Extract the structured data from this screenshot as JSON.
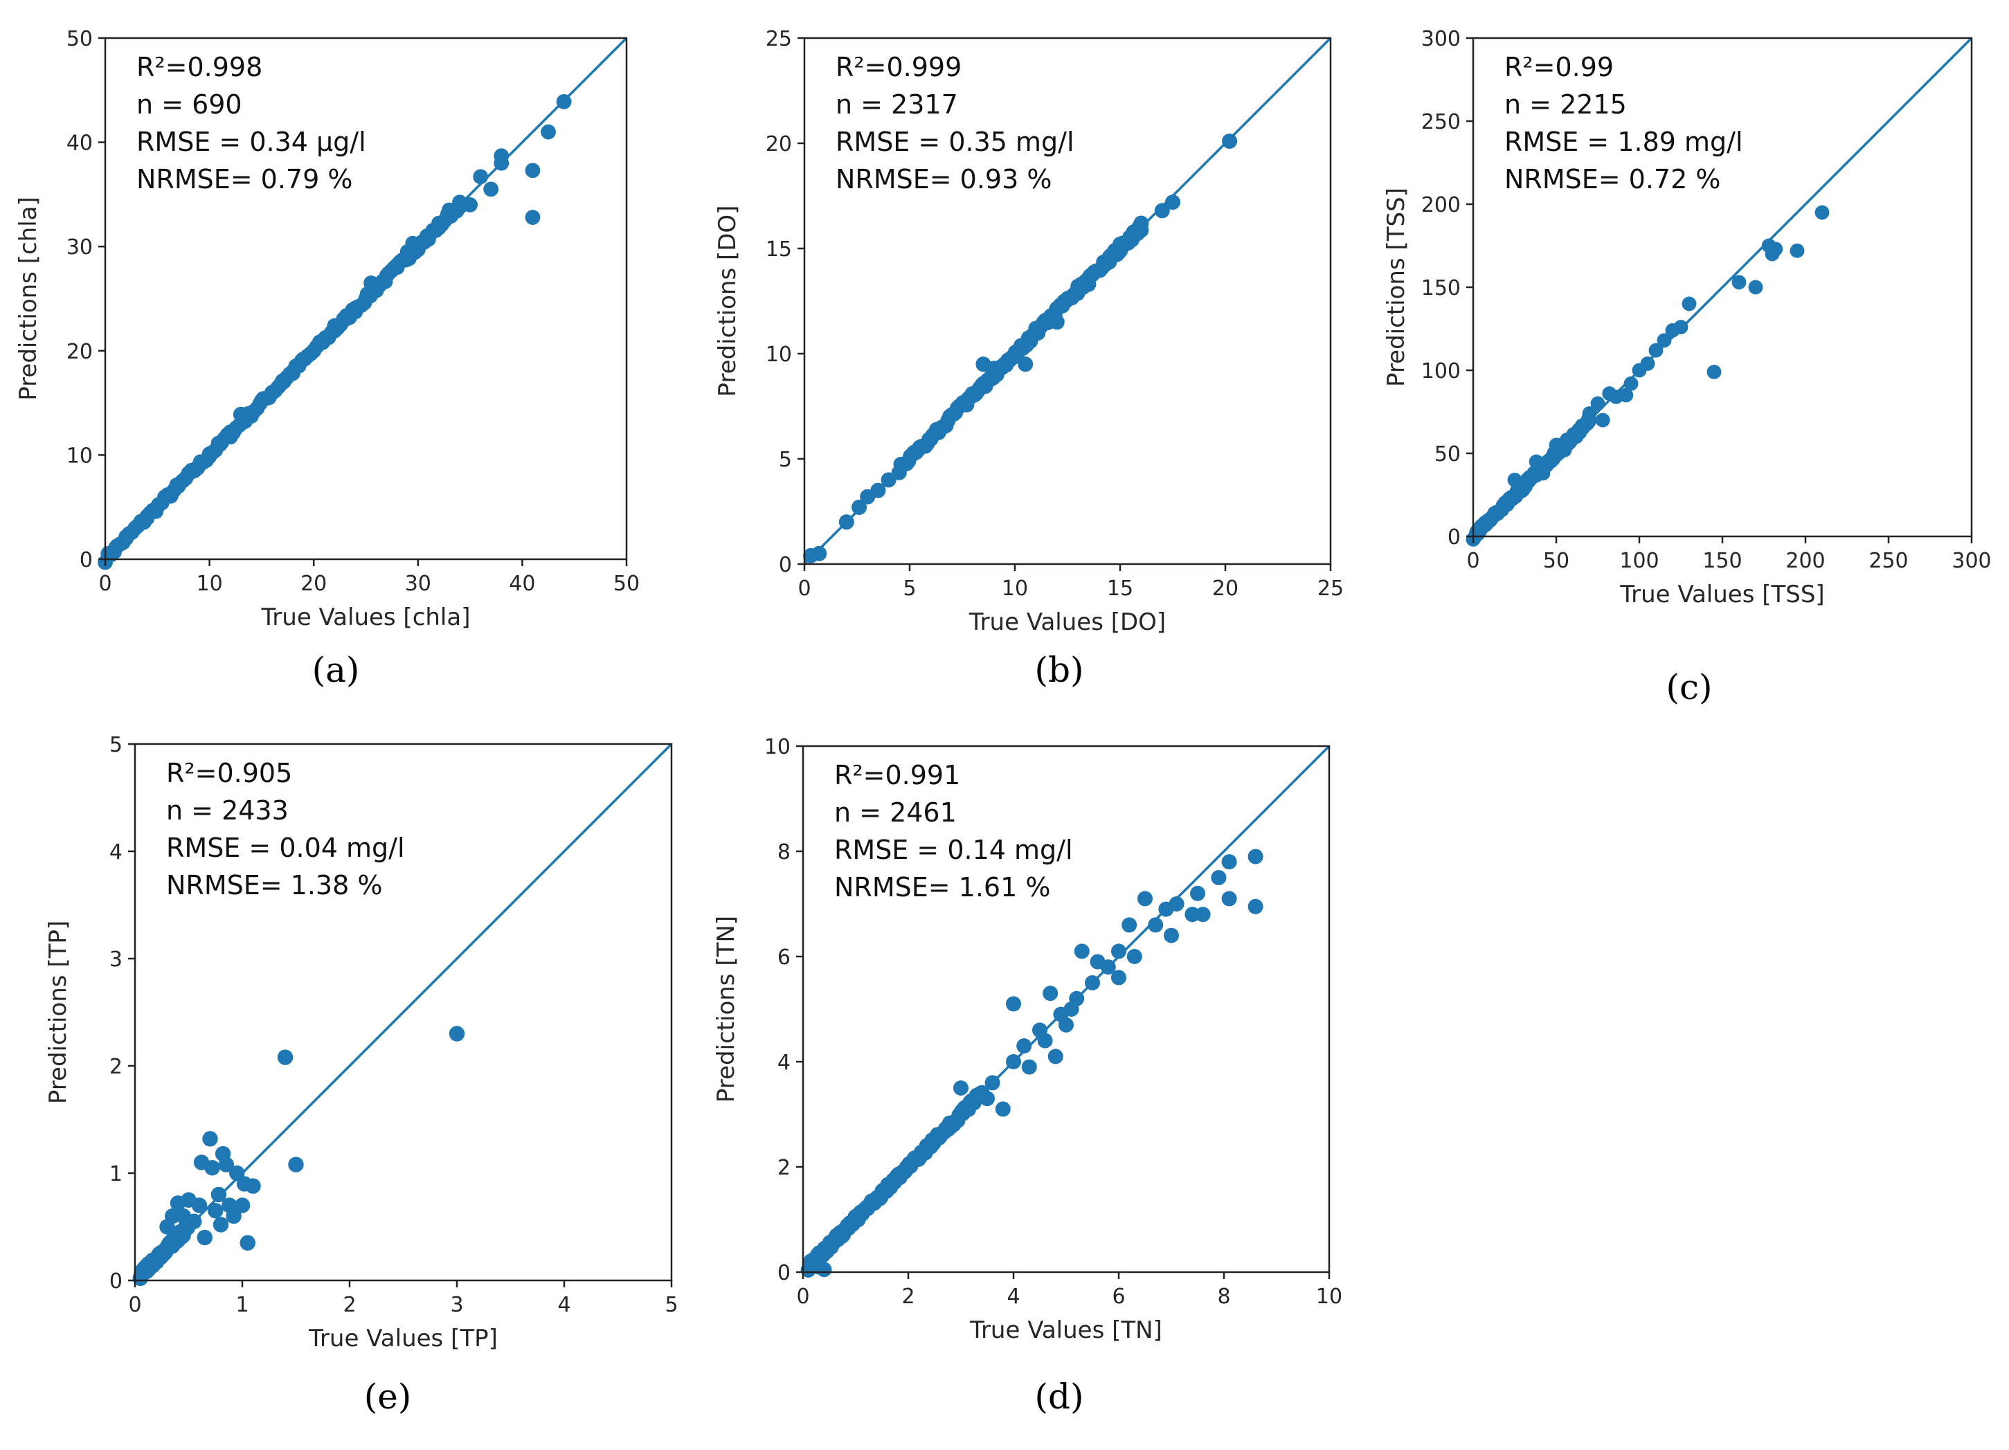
{
  "chart_data": [
    {
      "id": "a",
      "type": "scatter",
      "caption": "(a)",
      "xlabel": "True Values [chla]",
      "ylabel": "Predictions [chla]",
      "xlim": [
        0,
        50
      ],
      "ylim": [
        0,
        50
      ],
      "xticks": [
        0,
        10,
        20,
        30,
        40,
        50
      ],
      "yticks": [
        0,
        10,
        20,
        30,
        40,
        50
      ],
      "reference_line": [
        [
          0,
          0
        ],
        [
          50,
          50
        ]
      ],
      "stats": [
        "R²=0.998",
        "n = 690",
        "RMSE = 0.34 µg/l",
        "NRMSE= 0.79 %"
      ],
      "series": [
        {
          "color": "#1f77b4",
          "dense_range": [
            0,
            34
          ],
          "dense_count": 120,
          "points": [
            [
              0.5,
              0.5
            ],
            [
              1,
              1.1
            ],
            [
              2,
              2
            ],
            [
              3,
              3.1
            ],
            [
              4,
              4.1
            ],
            [
              5,
              5
            ],
            [
              6,
              6.1
            ],
            [
              7,
              7
            ],
            [
              8,
              8.2
            ],
            [
              9,
              9
            ],
            [
              10,
              10.1
            ],
            [
              11,
              11
            ],
            [
              12,
              12.2
            ],
            [
              13,
              13.9
            ],
            [
              14,
              14
            ],
            [
              15,
              15.2
            ],
            [
              16,
              16
            ],
            [
              17,
              17.1
            ],
            [
              18,
              18
            ],
            [
              19,
              19.2
            ],
            [
              20,
              20
            ],
            [
              21,
              21.1
            ],
            [
              22,
              22.4
            ],
            [
              23,
              23
            ],
            [
              24,
              24.1
            ],
            [
              25,
              25
            ],
            [
              25.5,
              26.5
            ],
            [
              26.5,
              26.5
            ],
            [
              27,
              27.2
            ],
            [
              28,
              28
            ],
            [
              28.5,
              28.7
            ],
            [
              29,
              29.5
            ],
            [
              29.5,
              30.3
            ],
            [
              30.5,
              30.5
            ],
            [
              31,
              30.7
            ],
            [
              32,
              31.8
            ],
            [
              33,
              33.5
            ],
            [
              34,
              33.8
            ],
            [
              35,
              34
            ],
            [
              36,
              36.7
            ],
            [
              37,
              35.5
            ],
            [
              38,
              38
            ],
            [
              38,
              38.7
            ],
            [
              41,
              32.8
            ],
            [
              41,
              37.3
            ],
            [
              42.5,
              41
            ],
            [
              44,
              43.9
            ]
          ]
        }
      ]
    },
    {
      "id": "b",
      "type": "scatter",
      "caption": "(b)",
      "xlabel": "True Values [DO]",
      "ylabel": "Predictions [DO]",
      "xlim": [
        0,
        25
      ],
      "ylim": [
        0,
        25
      ],
      "xticks": [
        0,
        5,
        10,
        15,
        20,
        25
      ],
      "yticks": [
        0,
        5,
        10,
        15,
        20,
        25
      ],
      "reference_line": [
        [
          0,
          0
        ],
        [
          25,
          25
        ]
      ],
      "stats": [
        "R²=0.999",
        "n = 2317",
        "RMSE = 0.35 mg/l",
        "NRMSE= 0.93 %"
      ],
      "series": [
        {
          "color": "#1f77b4",
          "dense_range": [
            4.5,
            16
          ],
          "dense_count": 130,
          "points": [
            [
              0.3,
              0.4
            ],
            [
              0.7,
              0.5
            ],
            [
              2,
              2
            ],
            [
              2.6,
              2.7
            ],
            [
              3,
              3.2
            ],
            [
              3.5,
              3.5
            ],
            [
              4,
              4
            ],
            [
              8.5,
              9.5
            ],
            [
              9,
              9.3
            ],
            [
              10.5,
              9.5
            ],
            [
              11,
              11.2
            ],
            [
              12,
              11.5
            ],
            [
              12.5,
              12.6
            ],
            [
              13,
              13.2
            ],
            [
              13.5,
              13.3
            ],
            [
              14.5,
              14.6
            ],
            [
              15,
              15.2
            ],
            [
              16,
              16.2
            ],
            [
              17,
              16.8
            ],
            [
              17.5,
              17.2
            ],
            [
              20.2,
              20.1
            ]
          ]
        }
      ]
    },
    {
      "id": "c",
      "type": "scatter",
      "caption": "(c)",
      "xlabel": "True Values [TSS]",
      "ylabel": "Predictions [TSS]",
      "xlim": [
        0,
        300
      ],
      "ylim": [
        0,
        300
      ],
      "xticks": [
        0,
        50,
        100,
        150,
        200,
        250,
        300
      ],
      "yticks": [
        0,
        50,
        100,
        150,
        200,
        250,
        300
      ],
      "reference_line": [
        [
          0,
          0
        ],
        [
          300,
          300
        ]
      ],
      "stats": [
        "R²=0.99",
        "n = 2215",
        "RMSE = 1.89 mg/l",
        "NRMSE= 0.72 %"
      ],
      "series": [
        {
          "color": "#1f77b4",
          "dense_range": [
            0,
            70
          ],
          "dense_count": 110,
          "points": [
            [
              25,
              34
            ],
            [
              30,
              28
            ],
            [
              38,
              45
            ],
            [
              42,
              38
            ],
            [
              50,
              55
            ],
            [
              55,
              52
            ],
            [
              62,
              60
            ],
            [
              70,
              74
            ],
            [
              75,
              80
            ],
            [
              78,
              70
            ],
            [
              82,
              86
            ],
            [
              86,
              84
            ],
            [
              92,
              85
            ],
            [
              95,
              92
            ],
            [
              100,
              100
            ],
            [
              105,
              104
            ],
            [
              110,
              112
            ],
            [
              115,
              118
            ],
            [
              120,
              124
            ],
            [
              125,
              126
            ],
            [
              130,
              140
            ],
            [
              145,
              99
            ],
            [
              160,
              153
            ],
            [
              170,
              150
            ],
            [
              178,
              175
            ],
            [
              180,
              170
            ],
            [
              182,
              173
            ],
            [
              195,
              172
            ],
            [
              210,
              195
            ]
          ]
        }
      ]
    },
    {
      "id": "e",
      "type": "scatter",
      "caption": "(e)",
      "xlabel": "True Values [TP]",
      "ylabel": "Predictions [TP]",
      "xlim": [
        0,
        5
      ],
      "ylim": [
        0,
        5
      ],
      "xticks": [
        0,
        1,
        2,
        3,
        4,
        5
      ],
      "yticks": [
        0,
        1,
        2,
        3,
        4,
        5
      ],
      "reference_line": [
        [
          0,
          0
        ],
        [
          5,
          5
        ]
      ],
      "stats": [
        "R²=0.905",
        "n = 2433",
        "RMSE = 0.04 mg/l",
        "NRMSE= 1.38 %"
      ],
      "series": [
        {
          "color": "#1f77b4",
          "dense_range": [
            0.05,
            0.5
          ],
          "dense_count": 90,
          "points": [
            [
              0.3,
              0.5
            ],
            [
              0.35,
              0.6
            ],
            [
              0.4,
              0.72
            ],
            [
              0.45,
              0.6
            ],
            [
              0.5,
              0.75
            ],
            [
              0.55,
              0.55
            ],
            [
              0.6,
              0.7
            ],
            [
              0.62,
              1.1
            ],
            [
              0.65,
              0.4
            ],
            [
              0.7,
              1.32
            ],
            [
              0.72,
              1.05
            ],
            [
              0.75,
              0.65
            ],
            [
              0.78,
              0.8
            ],
            [
              0.8,
              0.52
            ],
            [
              0.82,
              1.18
            ],
            [
              0.85,
              1.08
            ],
            [
              0.88,
              0.7
            ],
            [
              0.92,
              0.6
            ],
            [
              0.95,
              1.0
            ],
            [
              1.0,
              0.7
            ],
            [
              1.02,
              0.9
            ],
            [
              1.05,
              0.35
            ],
            [
              1.1,
              0.88
            ],
            [
              1.4,
              2.08
            ],
            [
              1.5,
              1.08
            ],
            [
              3.0,
              2.3
            ]
          ]
        }
      ]
    },
    {
      "id": "d",
      "type": "scatter",
      "caption": "(d)",
      "xlabel": "True Values [TN]",
      "ylabel": "Predictions [TN]",
      "xlim": [
        0,
        10
      ],
      "ylim": [
        0,
        10
      ],
      "xticks": [
        0,
        2,
        4,
        6,
        8,
        10
      ],
      "yticks": [
        0,
        2,
        4,
        6,
        8,
        10
      ],
      "reference_line": [
        [
          0,
          0
        ],
        [
          10,
          10
        ]
      ],
      "stats": [
        "R²=0.991",
        "n = 2461",
        "RMSE = 0.14 mg/l",
        "NRMSE= 1.61 %"
      ],
      "series": [
        {
          "color": "#1f77b4",
          "dense_range": [
            0.1,
            3.4
          ],
          "dense_count": 130,
          "points": [
            [
              0.3,
              0.1
            ],
            [
              0.4,
              0.05
            ],
            [
              3,
              3.5
            ],
            [
              3.2,
              3.2
            ],
            [
              3.5,
              3.3
            ],
            [
              3.6,
              3.6
            ],
            [
              3.8,
              3.1
            ],
            [
              4,
              5.1
            ],
            [
              4,
              4
            ],
            [
              4.2,
              4.3
            ],
            [
              4.3,
              3.9
            ],
            [
              4.5,
              4.6
            ],
            [
              4.6,
              4.4
            ],
            [
              4.7,
              5.3
            ],
            [
              4.8,
              4.1
            ],
            [
              4.9,
              4.9
            ],
            [
              5,
              4.7
            ],
            [
              5.1,
              5.0
            ],
            [
              5.2,
              5.2
            ],
            [
              5.3,
              6.1
            ],
            [
              5.5,
              5.5
            ],
            [
              5.6,
              5.9
            ],
            [
              5.8,
              5.8
            ],
            [
              6,
              5.6
            ],
            [
              6,
              6.1
            ],
            [
              6.2,
              6.6
            ],
            [
              6.3,
              6.0
            ],
            [
              6.5,
              7.1
            ],
            [
              6.7,
              6.6
            ],
            [
              6.9,
              6.9
            ],
            [
              7,
              6.4
            ],
            [
              7.1,
              7.0
            ],
            [
              7.4,
              6.8
            ],
            [
              7.5,
              7.2
            ],
            [
              7.6,
              6.8
            ],
            [
              7.9,
              7.5
            ],
            [
              8.1,
              7.8
            ],
            [
              8.1,
              7.1
            ],
            [
              8.6,
              7.9
            ],
            [
              8.6,
              6.95
            ]
          ]
        }
      ]
    }
  ]
}
